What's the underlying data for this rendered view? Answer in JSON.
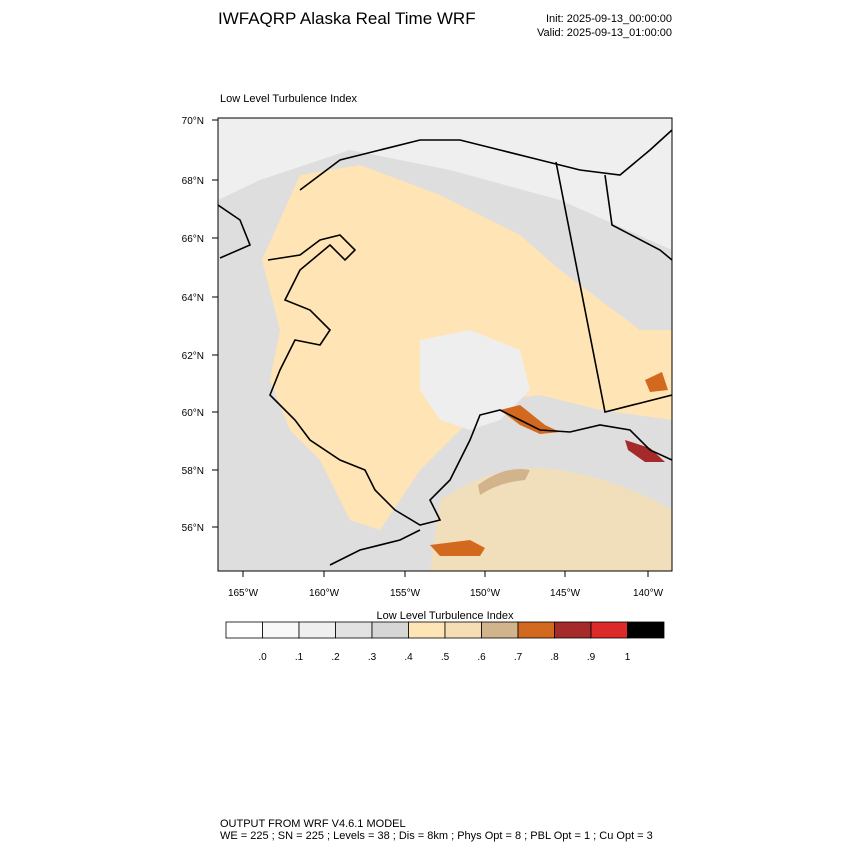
{
  "header": {
    "title": "IWFAQRP Alaska Real Time WRF",
    "init": "Init: 2025-09-13_00:00:00",
    "valid": "Valid: 2025-09-13_01:00:00"
  },
  "map": {
    "subtitle": "Low Level Turbulence Index",
    "lat_labels": [
      "70°N",
      "68°N",
      "66°N",
      "64°N",
      "62°N",
      "60°N",
      "58°N",
      "56°N"
    ],
    "lon_labels": [
      "165°W",
      "160°W",
      "155°W",
      "150°W",
      "145°W",
      "140°W"
    ]
  },
  "colorbar": {
    "title": "Low Level Turbulence Index",
    "colors": [
      "#ffffff",
      "#f8f8f8",
      "#efefef",
      "#e2e2e2",
      "#d6d6d6",
      "#ffe4b5",
      "#f5deb3",
      "#d2b48c",
      "#d2691e",
      "#a52a2a",
      "#dc2a2a",
      "#000000"
    ],
    "labels": [
      ".0",
      ".1",
      ".2",
      ".3",
      ".4",
      ".5",
      ".6",
      ".7",
      ".8",
      ".9",
      "1"
    ]
  },
  "footer": {
    "line1": "OUTPUT FROM WRF V4.6.1 MODEL",
    "line2": "WE = 225 ; SN = 225 ; Levels = 38 ; Dis = 8km ; Phys Opt = 8 ; PBL Opt = 1 ; Cu Opt = 3"
  }
}
